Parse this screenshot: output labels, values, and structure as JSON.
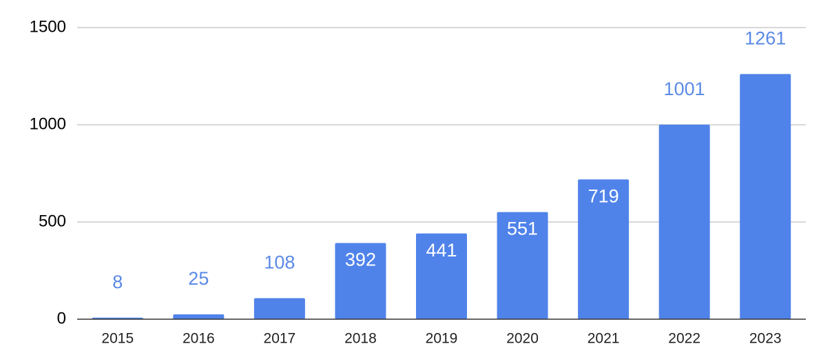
{
  "chart_data": {
    "type": "bar",
    "categories": [
      "2015",
      "2016",
      "2017",
      "2018",
      "2019",
      "2020",
      "2021",
      "2022",
      "2023"
    ],
    "values": [
      8,
      25,
      108,
      392,
      441,
      551,
      719,
      1001,
      1261
    ],
    "color": "#5083ea",
    "ylim": [
      0,
      1500
    ],
    "yticks": [
      0,
      500,
      1000,
      1500
    ],
    "grid": true
  }
}
